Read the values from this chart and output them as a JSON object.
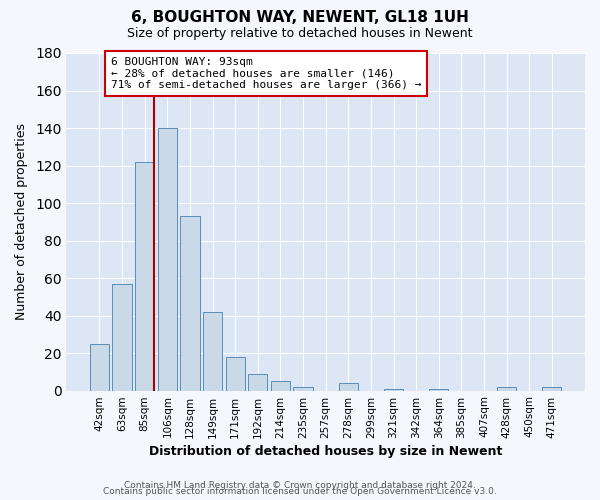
{
  "title": "6, BOUGHTON WAY, NEWENT, GL18 1UH",
  "subtitle": "Size of property relative to detached houses in Newent",
  "xlabel": "Distribution of detached houses by size in Newent",
  "ylabel": "Number of detached properties",
  "bar_labels": [
    "42sqm",
    "63sqm",
    "85sqm",
    "106sqm",
    "128sqm",
    "149sqm",
    "171sqm",
    "192sqm",
    "214sqm",
    "235sqm",
    "257sqm",
    "278sqm",
    "299sqm",
    "321sqm",
    "342sqm",
    "364sqm",
    "385sqm",
    "407sqm",
    "428sqm",
    "450sqm",
    "471sqm"
  ],
  "bar_values": [
    25,
    57,
    122,
    140,
    93,
    42,
    18,
    9,
    5,
    2,
    0,
    4,
    0,
    1,
    0,
    1,
    0,
    0,
    2,
    0,
    2
  ],
  "ylim": [
    0,
    180
  ],
  "yticks": [
    0,
    20,
    40,
    60,
    80,
    100,
    120,
    140,
    160,
    180
  ],
  "bar_color": "#c9d9e8",
  "bar_edge_color": "#5b8db8",
  "vline_bar_index": 2,
  "vline_color": "#aa0000",
  "annotation_text_line1": "6 BOUGHTON WAY: 93sqm",
  "annotation_text_line2": "← 28% of detached houses are smaller (146)",
  "annotation_text_line3": "71% of semi-detached houses are larger (366) →",
  "annotation_box_edge": "#cc0000",
  "footer1": "Contains HM Land Registry data © Crown copyright and database right 2024.",
  "footer2": "Contains public sector information licensed under the Open Government Licence v3.0.",
  "fig_bg_color": "#f5f7fc",
  "plot_bg_color": "#dce6f5"
}
